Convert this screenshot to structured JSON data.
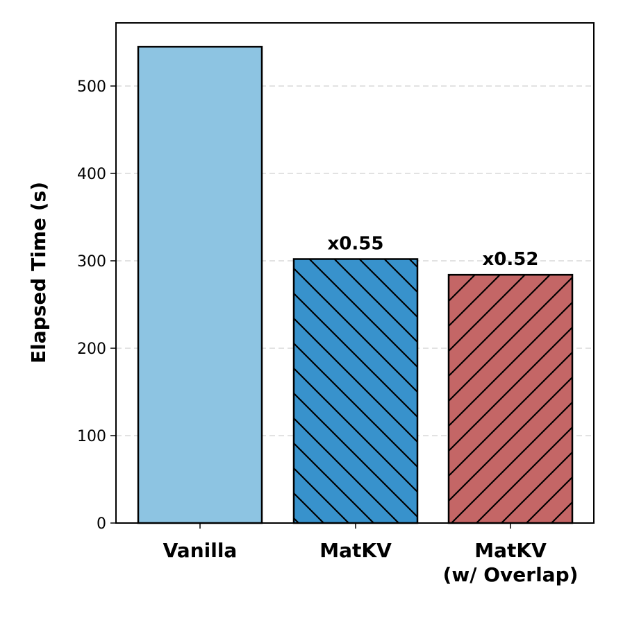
{
  "chart_data": {
    "type": "bar",
    "title": "",
    "xlabel": "",
    "ylabel": "Elapsed Time (s)",
    "ylim": [
      0,
      575
    ],
    "yticks": [
      0,
      100,
      200,
      300,
      400,
      500
    ],
    "grid": "y dashed",
    "categories": [
      "Vanilla",
      "MatKV",
      "MatKV (w/ Overlap)"
    ],
    "category_lines": [
      [
        "Vanilla"
      ],
      [
        "MatKV"
      ],
      [
        "MatKV",
        "(w/ Overlap)"
      ]
    ],
    "values": [
      545,
      302,
      284
    ],
    "annotations": [
      "",
      "x0.55",
      "x0.52"
    ],
    "colors": [
      "#8dc4e2",
      "#3892cc",
      "#c46666"
    ],
    "hatches": [
      "none",
      "backslash",
      "slash"
    ]
  }
}
